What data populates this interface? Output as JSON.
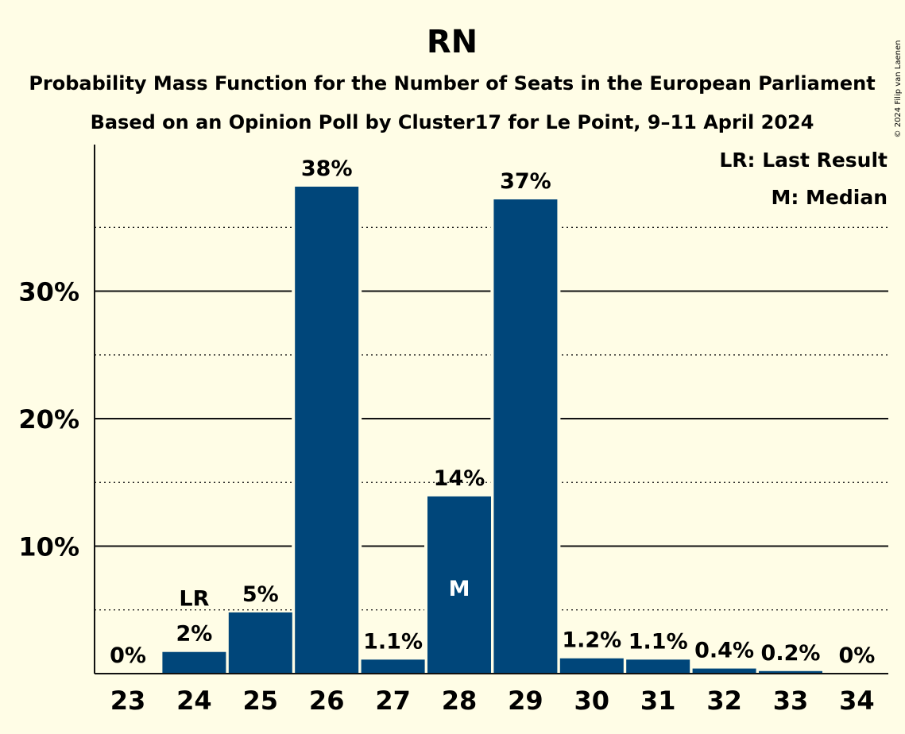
{
  "chart_data": {
    "type": "bar",
    "title": "RN",
    "subtitle_1": "Probability Mass Function for the Number of Seats in the European Parliament",
    "subtitle_2": "Based on an Opinion Poll by Cluster17 for Le Point, 9–11 April 2024",
    "categories": [
      "23",
      "24",
      "25",
      "26",
      "27",
      "28",
      "29",
      "30",
      "31",
      "32",
      "33",
      "34"
    ],
    "values": [
      0,
      1.7,
      4.8,
      38.2,
      1.1,
      13.9,
      37.2,
      1.2,
      1.1,
      0.4,
      0.2,
      0
    ],
    "value_labels": [
      "0%",
      "2%",
      "5%",
      "38%",
      "1.1%",
      "14%",
      "37%",
      "1.2%",
      "1.1%",
      "0.4%",
      "0.2%",
      "0%"
    ],
    "ylim": [
      0,
      41.5
    ],
    "ytick_values": [
      10,
      20,
      30
    ],
    "ytick_labels": [
      "10%",
      "20%",
      "30%"
    ],
    "minor_gridlines": [
      5,
      15,
      25,
      35
    ],
    "grid": true,
    "bar_color": "#00467a",
    "last_result": {
      "category": "24",
      "marker": "LR"
    },
    "median": {
      "category": "28",
      "marker": "M"
    },
    "legend": [
      "LR: Last Result",
      "M: Median"
    ],
    "legend_placement": "top-right",
    "copyright": "© 2024 Filip van Laenen"
  }
}
